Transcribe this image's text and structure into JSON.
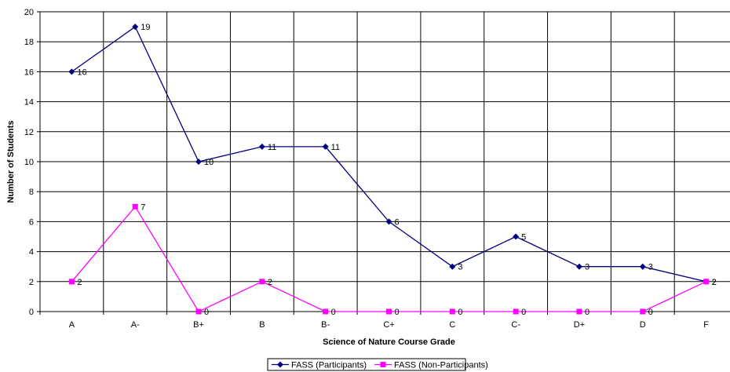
{
  "chart_data": {
    "type": "line",
    "categories": [
      "A",
      "A-",
      "B+",
      "B",
      "B-",
      "C+",
      "C",
      "C-",
      "D+",
      "D",
      "F"
    ],
    "xlabel": "Science of Nature Course Grade",
    "ylabel": "Number of Students",
    "ylim": [
      0,
      20
    ],
    "yticks": [
      0,
      2,
      4,
      6,
      8,
      10,
      12,
      14,
      16,
      18,
      20
    ],
    "grid": true,
    "legend_position": "bottom",
    "series": [
      {
        "name": "FASS (Participants)",
        "color": "#000080",
        "marker": "diamond",
        "values": [
          16,
          19,
          10,
          11,
          11,
          6,
          3,
          5,
          3,
          3,
          2
        ]
      },
      {
        "name": "FASS (Non-Participants)",
        "color": "#FF00FF",
        "marker": "square",
        "values": [
          2,
          7,
          0,
          2,
          0,
          0,
          0,
          0,
          0,
          0,
          2
        ]
      }
    ]
  }
}
